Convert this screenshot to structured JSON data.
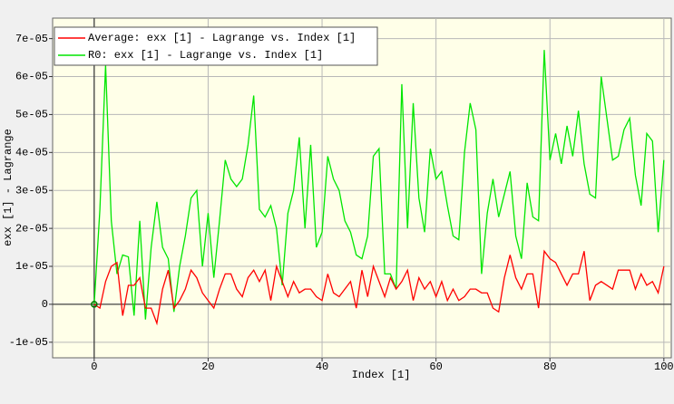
{
  "chart_data": {
    "type": "line",
    "xlabel": "Index [1]",
    "ylabel": "exx [1] - Lagrange",
    "legend": "upper left",
    "grid": true,
    "xlim": [
      -7.3,
      101.3
    ],
    "ylim": [
      -1.41e-05,
      7.54e-05
    ],
    "xticks": [
      0,
      20,
      40,
      60,
      80,
      100
    ],
    "yticks": [
      {
        "value": -1e-05,
        "label": "-1e-05"
      },
      0,
      {
        "value": 1e-05,
        "label": "1e-05"
      },
      {
        "value": 2e-05,
        "label": "2e-05"
      },
      {
        "value": 3e-05,
        "label": "3e-05"
      },
      {
        "value": 4e-05,
        "label": "4e-05"
      },
      {
        "value": 5e-05,
        "label": "5e-05"
      },
      {
        "value": 6e-05,
        "label": "6e-05"
      },
      {
        "value": 7e-05,
        "label": "7e-05"
      }
    ],
    "x": [
      0,
      1,
      2,
      3,
      4,
      5,
      6,
      7,
      8,
      9,
      10,
      11,
      12,
      13,
      14,
      15,
      16,
      17,
      18,
      19,
      20,
      21,
      22,
      23,
      24,
      25,
      26,
      27,
      28,
      29,
      30,
      31,
      32,
      33,
      34,
      35,
      36,
      37,
      38,
      39,
      40,
      41,
      42,
      43,
      44,
      45,
      46,
      47,
      48,
      49,
      50,
      51,
      52,
      53,
      54,
      55,
      56,
      57,
      58,
      59,
      60,
      61,
      62,
      63,
      64,
      65,
      66,
      67,
      68,
      69,
      70,
      71,
      72,
      73,
      74,
      75,
      76,
      77,
      78,
      79,
      80,
      81,
      82,
      83,
      84,
      85,
      86,
      87,
      88,
      89,
      90,
      91,
      92,
      93,
      94,
      95,
      96,
      97,
      98,
      99,
      100
    ],
    "series": [
      {
        "name": "Average: exx [1] - Lagrange vs. Index [1]",
        "color": "#ff0000",
        "values": [
          0,
          -1e-06,
          6e-06,
          1e-05,
          1.1e-05,
          -3e-06,
          5e-06,
          5e-06,
          7e-06,
          -1e-06,
          -1e-06,
          -5e-06,
          4e-06,
          9e-06,
          -1e-06,
          1e-06,
          4e-06,
          9e-06,
          7e-06,
          3e-06,
          1e-06,
          -1e-06,
          4e-06,
          8e-06,
          8e-06,
          4e-06,
          2e-06,
          7e-06,
          9e-06,
          6e-06,
          9e-06,
          1e-06,
          1e-05,
          6e-06,
          2e-06,
          6e-06,
          3e-06,
          4e-06,
          4e-06,
          2e-06,
          1e-06,
          8e-06,
          3e-06,
          2e-06,
          4e-06,
          6e-06,
          -1e-06,
          9e-06,
          2e-06,
          1e-05,
          6e-06,
          2e-06,
          7e-06,
          4e-06,
          6e-06,
          9e-06,
          1e-06,
          7e-06,
          4e-06,
          6e-06,
          2e-06,
          6e-06,
          1e-06,
          4e-06,
          1e-06,
          2e-06,
          4e-06,
          4e-06,
          3e-06,
          3e-06,
          -1e-06,
          -2e-06,
          7e-06,
          1.3e-05,
          7e-06,
          4e-06,
          8e-06,
          8e-06,
          -1e-06,
          1.4e-05,
          1.2e-05,
          1.1e-05,
          8e-06,
          5e-06,
          8e-06,
          8e-06,
          1.4e-05,
          1e-06,
          5e-06,
          6e-06,
          5e-06,
          4e-06,
          9e-06,
          9e-06,
          9e-06,
          4e-06,
          8e-06,
          5e-06,
          6e-06,
          3e-06,
          1e-05
        ]
      },
      {
        "name": "R0: exx [1] - Lagrange vs. Index [1]",
        "color": "#00e600",
        "values": [
          0,
          2.5e-05,
          6.3e-05,
          2.2e-05,
          8e-06,
          1.3e-05,
          1.25e-05,
          -3e-06,
          2.2e-05,
          -4e-06,
          1.5e-05,
          2.7e-05,
          1.5e-05,
          1.2e-05,
          -2e-06,
          1e-05,
          1.8e-05,
          2.8e-05,
          3e-05,
          1e-05,
          2.4e-05,
          7e-06,
          2.2e-05,
          3.8e-05,
          3.3e-05,
          3.1e-05,
          3.3e-05,
          4.2e-05,
          5.5e-05,
          2.5e-05,
          2.3e-05,
          2.6e-05,
          2e-05,
          5e-06,
          2.4e-05,
          3e-05,
          4.4e-05,
          2e-05,
          4.2e-05,
          1.5e-05,
          1.9e-05,
          3.9e-05,
          3.3e-05,
          3e-05,
          2.2e-05,
          1.9e-05,
          1.3e-05,
          1.2e-05,
          1.8e-05,
          3.9e-05,
          4.1e-05,
          8e-06,
          8e-06,
          4e-06,
          5.8e-05,
          2e-05,
          5.3e-05,
          2.8e-05,
          1.9e-05,
          4.1e-05,
          3.3e-05,
          3.5e-05,
          2.6e-05,
          1.8e-05,
          1.7e-05,
          4e-05,
          5.3e-05,
          4.6e-05,
          8e-06,
          2.4e-05,
          3.3e-05,
          2.3e-05,
          2.9e-05,
          3.5e-05,
          1.8e-05,
          1.2e-05,
          3.2e-05,
          2.3e-05,
          2.2e-05,
          6.7e-05,
          3.8e-05,
          4.5e-05,
          3.7e-05,
          4.7e-05,
          3.9e-05,
          5.1e-05,
          3.7e-05,
          2.9e-05,
          2.8e-05,
          6e-05,
          4.9e-05,
          3.8e-05,
          3.9e-05,
          4.6e-05,
          4.9e-05,
          3.4e-05,
          2.6e-05,
          4.5e-05,
          4.3e-05,
          1.9e-05,
          3.8e-05
        ]
      }
    ]
  }
}
